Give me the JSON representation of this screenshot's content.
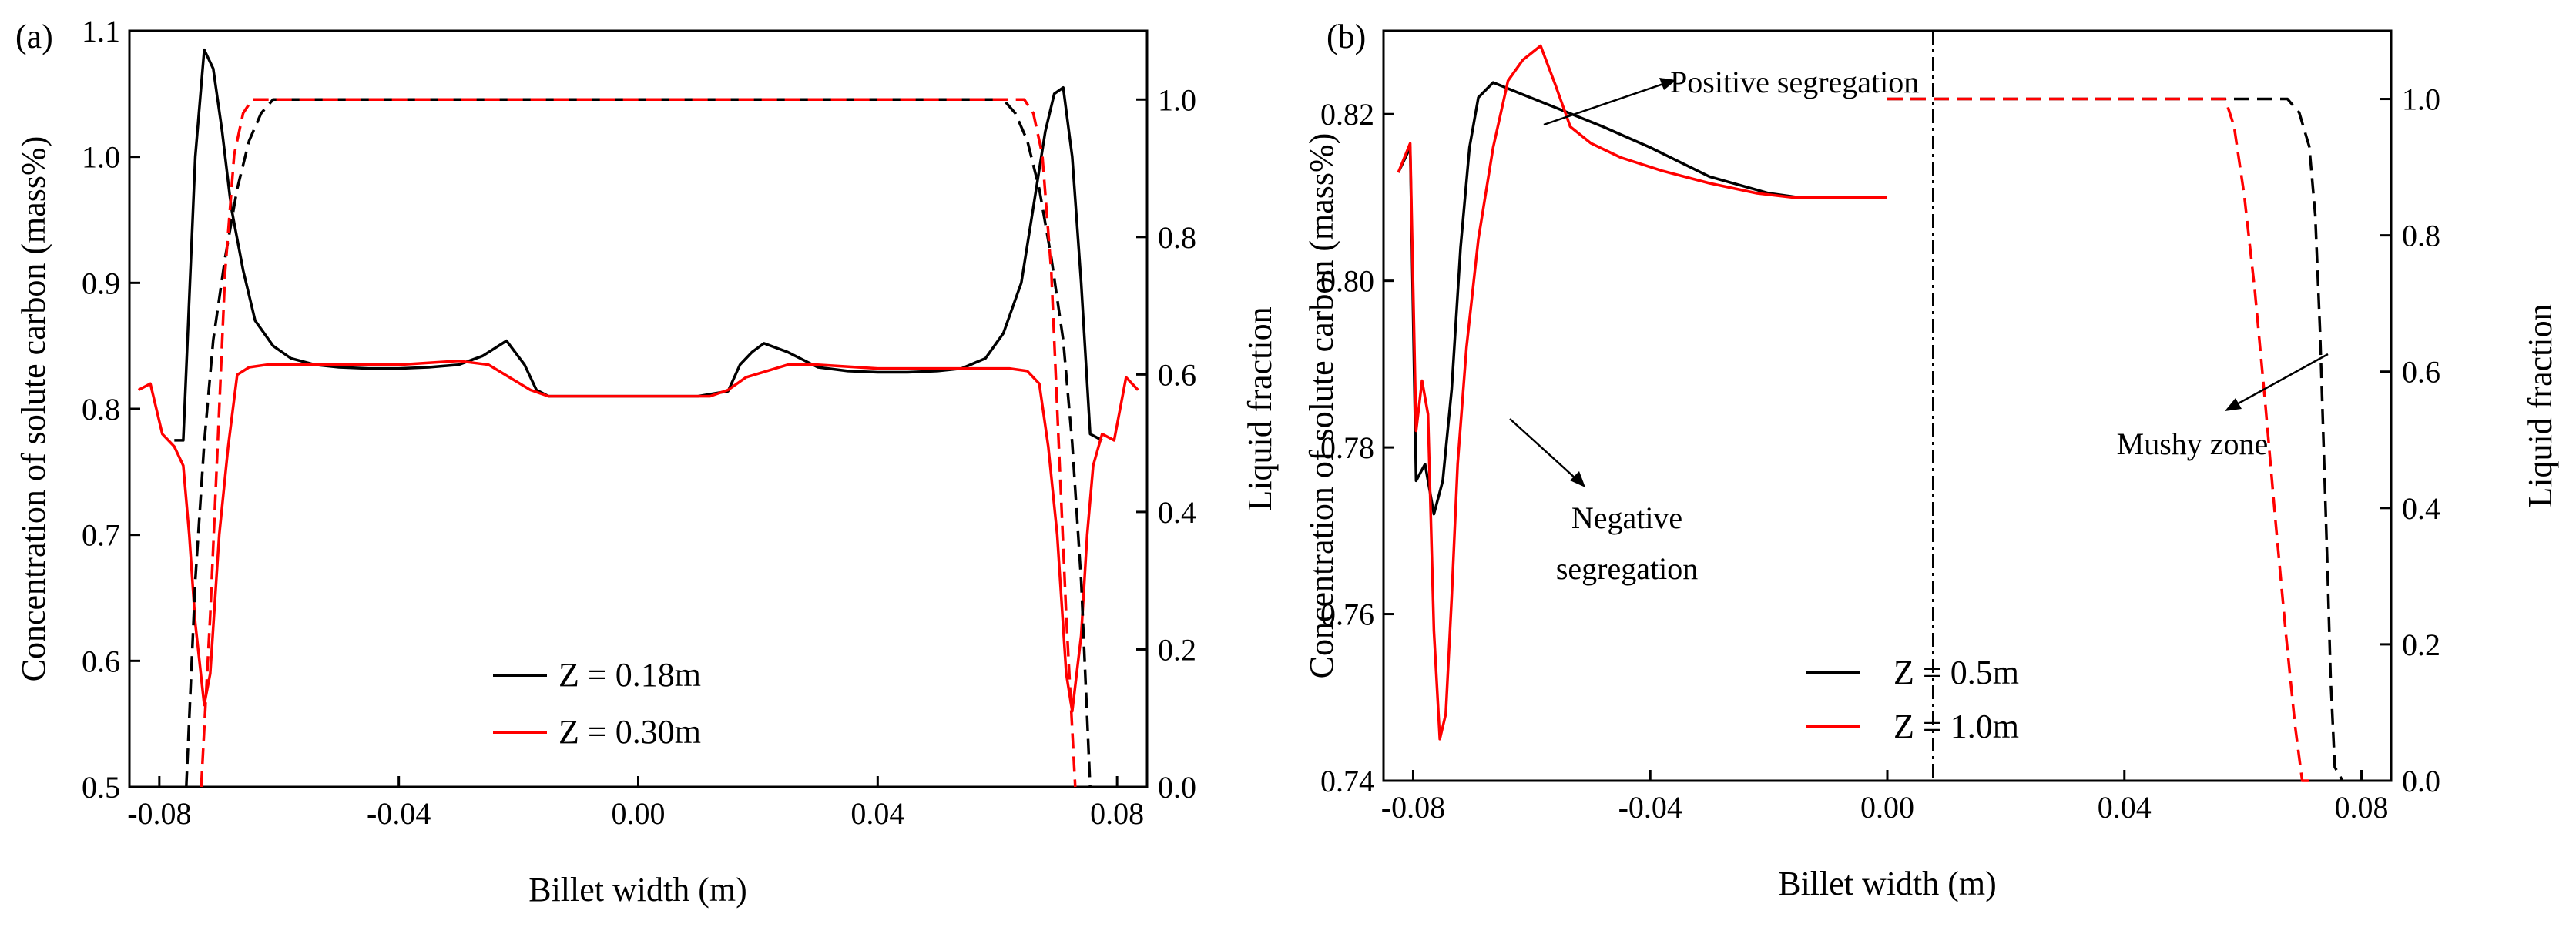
{
  "chart_data": [
    {
      "panel_label": "(a)",
      "type": "line",
      "xlabel": "Billet width (m)",
      "ylabel_left": "Concentration of solute carbon (mass%)",
      "ylabel_right": "Liquid fraction",
      "xlim": [
        -0.085,
        0.085
      ],
      "ylim_left": [
        0.5,
        1.1
      ],
      "ylim_right": [
        0.0,
        1.1
      ],
      "x_ticks": [
        -0.08,
        -0.04,
        0.0,
        0.04,
        0.08
      ],
      "x_tick_labels": [
        "-0.08",
        "-0.04",
        "0.00",
        "0.04",
        "0.08"
      ],
      "y_left_ticks": [
        0.5,
        0.6,
        0.7,
        0.8,
        0.9,
        1.0,
        1.1
      ],
      "y_left_tick_labels": [
        "0.5",
        "0.6",
        "0.7",
        "0.8",
        "0.9",
        "1.0",
        "1.1"
      ],
      "y_right_ticks": [
        0.0,
        0.2,
        0.4,
        0.6,
        0.8,
        1.0
      ],
      "y_right_tick_labels": [
        "0.0",
        "0.2",
        "0.4",
        "0.6",
        "0.8",
        "1.0"
      ],
      "legend": [
        {
          "label": "Z = 0.18m",
          "color": "#000000"
        },
        {
          "label": "Z = 0.30m",
          "color": "#ff0000"
        }
      ],
      "series": [
        {
          "name": "Z = 0.18m carbon",
          "axis": "left",
          "dash": false,
          "color": "#000000",
          "x": [
            -0.0775,
            -0.076,
            -0.074,
            -0.0725,
            -0.071,
            -0.0695,
            -0.068,
            -0.066,
            -0.064,
            -0.061,
            -0.058,
            -0.054,
            -0.05,
            -0.045,
            -0.04,
            -0.035,
            -0.03,
            -0.026,
            -0.022,
            -0.019,
            -0.017,
            -0.015,
            -0.01,
            0.0,
            0.01,
            0.015,
            0.017,
            0.019,
            0.021,
            0.025,
            0.03,
            0.035,
            0.04,
            0.045,
            0.05,
            0.054,
            0.058,
            0.061,
            0.064,
            0.066,
            0.068,
            0.0695,
            0.071,
            0.0725,
            0.074,
            0.0755,
            0.0775
          ],
          "y": [
            0.775,
            0.775,
            1.0,
            1.085,
            1.07,
            1.02,
            0.96,
            0.91,
            0.87,
            0.85,
            0.84,
            0.835,
            0.833,
            0.832,
            0.832,
            0.833,
            0.835,
            0.842,
            0.854,
            0.835,
            0.815,
            0.81,
            0.81,
            0.81,
            0.81,
            0.814,
            0.835,
            0.845,
            0.852,
            0.845,
            0.833,
            0.83,
            0.829,
            0.829,
            0.83,
            0.832,
            0.84,
            0.86,
            0.9,
            0.96,
            1.02,
            1.05,
            1.055,
            1.0,
            0.9,
            0.78,
            0.775
          ]
        },
        {
          "name": "Z = 0.30m carbon",
          "axis": "left",
          "dash": false,
          "color": "#ff0000",
          "x": [
            -0.0835,
            -0.0815,
            -0.0795,
            -0.0775,
            -0.076,
            -0.075,
            -0.074,
            -0.0725,
            -0.0715,
            -0.07,
            -0.0685,
            -0.067,
            -0.065,
            -0.062,
            -0.058,
            -0.05,
            -0.04,
            -0.03,
            -0.025,
            -0.018,
            -0.015,
            -0.012,
            0.0,
            0.012,
            0.015,
            0.018,
            0.025,
            0.03,
            0.04,
            0.05,
            0.058,
            0.062,
            0.065,
            0.067,
            0.0685,
            0.07,
            0.0715,
            0.0725,
            0.074,
            0.075,
            0.076,
            0.0775,
            0.0795,
            0.0815,
            0.0835
          ],
          "y": [
            0.815,
            0.82,
            0.78,
            0.77,
            0.755,
            0.7,
            0.63,
            0.565,
            0.59,
            0.7,
            0.77,
            0.827,
            0.833,
            0.835,
            0.835,
            0.835,
            0.835,
            0.838,
            0.835,
            0.815,
            0.81,
            0.81,
            0.81,
            0.81,
            0.815,
            0.825,
            0.835,
            0.835,
            0.832,
            0.832,
            0.832,
            0.832,
            0.83,
            0.82,
            0.77,
            0.7,
            0.59,
            0.56,
            0.62,
            0.7,
            0.755,
            0.78,
            0.775,
            0.825,
            0.815
          ]
        },
        {
          "name": "Z = 0.18m liquid fraction",
          "axis": "right",
          "dash": true,
          "color": "#000000",
          "x": [
            -0.0755,
            -0.074,
            -0.0725,
            -0.071,
            -0.069,
            -0.067,
            -0.065,
            -0.063,
            -0.061,
            -0.06,
            0.06,
            0.061,
            0.063,
            0.065,
            0.067,
            0.069,
            0.071,
            0.0725,
            0.074,
            0.0755
          ],
          "y": [
            0.0,
            0.3,
            0.5,
            0.65,
            0.77,
            0.87,
            0.94,
            0.98,
            1.0,
            1.0,
            1.0,
            1.0,
            0.98,
            0.94,
            0.87,
            0.77,
            0.65,
            0.5,
            0.3,
            0.0
          ]
        },
        {
          "name": "Z = 0.30m liquid fraction",
          "axis": "right",
          "dash": true,
          "color": "#ff0000",
          "x": [
            -0.073,
            -0.0715,
            -0.07,
            -0.069,
            -0.0675,
            -0.066,
            -0.0645,
            -0.063,
            0.063,
            0.0645,
            0.066,
            0.0675,
            0.069,
            0.07,
            0.0715,
            0.073
          ],
          "y": [
            0.0,
            0.25,
            0.55,
            0.75,
            0.92,
            0.98,
            1.0,
            1.0,
            1.0,
            1.0,
            0.98,
            0.92,
            0.75,
            0.55,
            0.25,
            0.0
          ]
        }
      ]
    },
    {
      "panel_label": "(b)",
      "type": "line",
      "xlabel": "Billet width (m)",
      "ylabel_left": "Concentration of solute carbon (mass%)",
      "ylabel_right": "Liquid fraction",
      "xlim": [
        -0.085,
        0.085
      ],
      "ylim_left": [
        0.74,
        0.83
      ],
      "ylim_right": [
        0.0,
        1.1
      ],
      "x_ticks": [
        -0.08,
        -0.04,
        0.0,
        0.04,
        0.08
      ],
      "x_tick_labels": [
        "-0.08",
        "-0.04",
        "0.00",
        "0.04",
        "0.08"
      ],
      "y_left_ticks": [
        0.74,
        0.76,
        0.78,
        0.8,
        0.82
      ],
      "y_left_tick_labels": [
        "0.74",
        "0.76",
        "0.78",
        "0.80",
        "0.82"
      ],
      "y_right_ticks": [
        0.0,
        0.2,
        0.4,
        0.6,
        0.8,
        1.0
      ],
      "y_right_tick_labels": [
        "0.0",
        "0.2",
        "0.4",
        "0.6",
        "0.8",
        "1.0"
      ],
      "legend": [
        {
          "label": "Z = 0.5m",
          "color": "#000000"
        },
        {
          "label": "Z = 1.0m",
          "color": "#ff0000"
        }
      ],
      "annotations": [
        {
          "text": "Positive segregation",
          "target_x": -0.077,
          "target_y": 0.8195
        },
        {
          "text": "Negative",
          "target_x": -0.077,
          "target_y": 0.7785
        },
        {
          "text": "segregation",
          "target_x": -0.077,
          "target_y": 0.7785
        },
        {
          "text": "Mushy zone",
          "target_x": 0.061,
          "target_y_right": 0.78
        }
      ],
      "series": [
        {
          "name": "Z = 0.5m carbon",
          "axis": "left",
          "dash": false,
          "color": "#000000",
          "x": [
            -0.0825,
            -0.0805,
            -0.0795,
            -0.078,
            -0.0765,
            -0.075,
            -0.0735,
            -0.072,
            -0.0705,
            -0.069,
            -0.0665,
            -0.062,
            -0.055,
            -0.048,
            -0.04,
            -0.03,
            -0.02,
            -0.015,
            0.0
          ],
          "y": [
            0.813,
            0.816,
            0.776,
            0.778,
            0.772,
            0.776,
            0.787,
            0.804,
            0.816,
            0.822,
            0.8238,
            0.8225,
            0.8205,
            0.8185,
            0.816,
            0.8125,
            0.8105,
            0.81,
            0.81
          ]
        },
        {
          "name": "Z = 1.0m carbon",
          "axis": "left",
          "dash": false,
          "color": "#ff0000",
          "x": [
            -0.0825,
            -0.0805,
            -0.0795,
            -0.0785,
            -0.0775,
            -0.0765,
            -0.0755,
            -0.0745,
            -0.0735,
            -0.0725,
            -0.071,
            -0.069,
            -0.0665,
            -0.064,
            -0.0615,
            -0.0585,
            -0.056,
            -0.0535,
            -0.05,
            -0.045,
            -0.038,
            -0.03,
            -0.022,
            -0.016,
            0.0
          ],
          "y": [
            0.813,
            0.8165,
            0.782,
            0.788,
            0.784,
            0.758,
            0.745,
            0.748,
            0.762,
            0.778,
            0.792,
            0.805,
            0.816,
            0.824,
            0.8265,
            0.8282,
            0.8235,
            0.8185,
            0.8165,
            0.8148,
            0.8132,
            0.8117,
            0.8105,
            0.81,
            0.81
          ]
        },
        {
          "name": "Z = 0.5m liquid fraction",
          "axis": "right",
          "dash": true,
          "color": "#000000",
          "x": [
            0.0,
            0.066,
            0.0675,
            0.0695,
            0.0712,
            0.0722,
            0.073,
            0.0738,
            0.0743,
            0.0748,
            0.0755,
            0.0768
          ],
          "y": [
            1.0,
            1.0,
            1.0,
            0.98,
            0.93,
            0.83,
            0.66,
            0.44,
            0.3,
            0.15,
            0.02,
            0.0
          ]
        },
        {
          "name": "Z = 1.0m liquid fraction",
          "axis": "right",
          "dash": true,
          "color": "#ff0000",
          "x": [
            0.0,
            0.057,
            0.0585,
            0.0602,
            0.062,
            0.0638,
            0.0655,
            0.0672,
            0.0688,
            0.07,
            0.0712
          ],
          "y": [
            1.0,
            1.0,
            0.96,
            0.86,
            0.72,
            0.55,
            0.38,
            0.22,
            0.08,
            0.0,
            0.0
          ]
        }
      ]
    }
  ]
}
